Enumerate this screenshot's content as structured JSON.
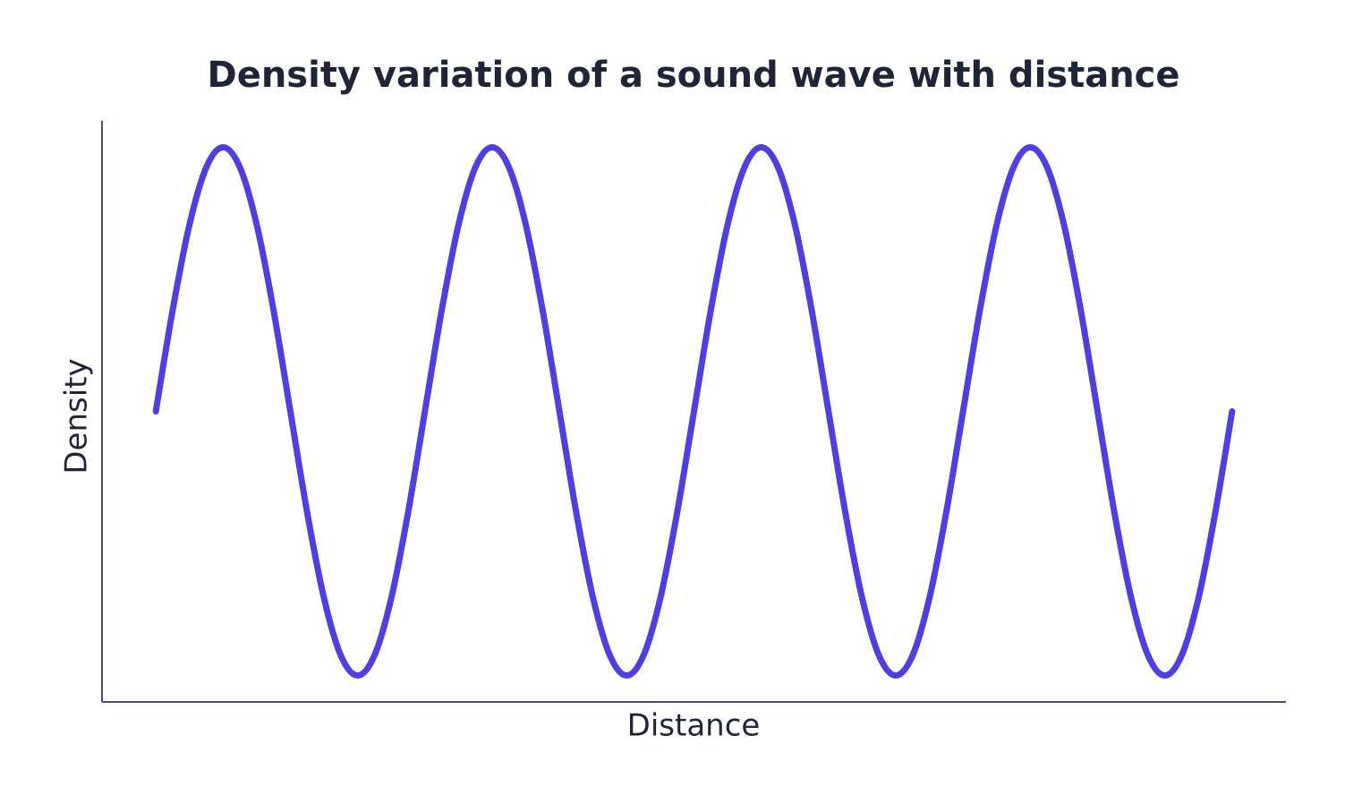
{
  "chart_data": {
    "type": "line",
    "title": "Density variation of a sound wave with distance",
    "x_label": "Distance",
    "y_label": "Density",
    "x": [
      0,
      0.0625,
      0.125,
      0.1875,
      0.25,
      0.3125,
      0.375,
      0.4375,
      0.5,
      0.5625,
      0.625,
      0.6875,
      0.75,
      0.8125,
      0.875,
      0.9375,
      1,
      1.0625,
      1.125,
      1.1875,
      1.25,
      1.3125,
      1.375,
      1.4375,
      1.5,
      1.5625,
      1.625,
      1.6875,
      1.75,
      1.8125,
      1.875,
      1.9375,
      2,
      2.0625,
      2.125,
      2.1875,
      2.25,
      2.3125,
      2.375,
      2.4375,
      2.5,
      2.5625,
      2.625,
      2.6875,
      2.75,
      2.8125,
      2.875,
      2.9375,
      3,
      3.0625,
      3.125,
      3.1875,
      3.25,
      3.3125,
      3.375,
      3.4375,
      3.5,
      3.5625,
      3.625,
      3.6875,
      3.75,
      3.8125,
      3.875,
      3.9375,
      4
    ],
    "series": [
      {
        "color": "#4f3fe0",
        "values": [
          0,
          0.383,
          0.707,
          0.924,
          1,
          0.924,
          0.707,
          0.383,
          0,
          -0.383,
          -0.707,
          -0.924,
          -1,
          -0.924,
          -0.707,
          -0.383,
          0,
          0.383,
          0.707,
          0.924,
          1,
          0.924,
          0.707,
          0.383,
          0,
          -0.383,
          -0.707,
          -0.924,
          -1,
          -0.924,
          -0.707,
          -0.383,
          0,
          0.383,
          0.707,
          0.924,
          1,
          0.924,
          0.707,
          0.383,
          0,
          -0.383,
          -0.707,
          -0.924,
          -1,
          -0.924,
          -0.707,
          -0.383,
          0,
          0.383,
          0.707,
          0.924,
          1,
          0.924,
          0.707,
          0.383,
          0,
          -0.383,
          -0.707,
          -0.924,
          -1,
          -0.924,
          -0.707,
          -0.383,
          0
        ]
      }
    ],
    "xlim": [
      -0.2,
      4.2
    ],
    "ylim": [
      -1.1,
      1.1
    ],
    "grid": false
  }
}
